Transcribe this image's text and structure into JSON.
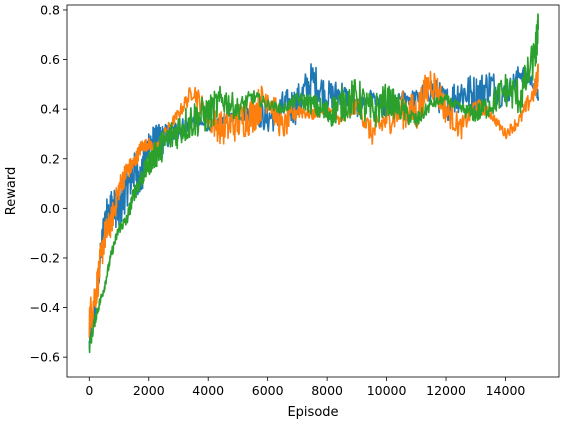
{
  "chart_data": {
    "type": "line",
    "title": "",
    "xlabel": "Episode",
    "ylabel": "Reward",
    "xlim": [
      -750,
      15800
    ],
    "ylim": [
      -0.68,
      0.82
    ],
    "xticks": [
      0,
      2000,
      4000,
      6000,
      8000,
      10000,
      12000,
      14000
    ],
    "xtick_labels": [
      "0",
      "2000",
      "4000",
      "6000",
      "8000",
      "10000",
      "12000",
      "14000"
    ],
    "yticks": [
      -0.6,
      -0.4,
      -0.2,
      0.0,
      0.2,
      0.4,
      0.6,
      0.8
    ],
    "ytick_labels": [
      "−0.6",
      "−0.4",
      "−0.2",
      "0.0",
      "0.2",
      "0.4",
      "0.6",
      "0.8"
    ],
    "grid": false,
    "legend": "none",
    "series": [
      {
        "color": "#1f77b4",
        "x": [
          0,
          250,
          500,
          750,
          1000,
          1250,
          1500,
          1750,
          2000,
          2250,
          2500,
          3000,
          3500,
          4000,
          4500,
          5000,
          5500,
          6000,
          6500,
          7000,
          7500,
          8000,
          8500,
          9000,
          9500,
          10000,
          10500,
          11000,
          11500,
          12000,
          12500,
          13000,
          13500,
          14000,
          14500,
          15000,
          15100
        ],
        "y": [
          -0.55,
          -0.35,
          -0.05,
          0.02,
          -0.02,
          0.08,
          0.15,
          0.12,
          0.26,
          0.27,
          0.28,
          0.32,
          0.35,
          0.33,
          0.36,
          0.38,
          0.39,
          0.36,
          0.4,
          0.42,
          0.52,
          0.45,
          0.47,
          0.4,
          0.46,
          0.38,
          0.45,
          0.44,
          0.48,
          0.42,
          0.47,
          0.46,
          0.5,
          0.45,
          0.55,
          0.5,
          0.45
        ]
      },
      {
        "color": "#ff7f0e",
        "x": [
          0,
          250,
          500,
          750,
          1000,
          1250,
          1500,
          1750,
          2000,
          2250,
          2500,
          3000,
          3500,
          4000,
          4500,
          5000,
          5500,
          6000,
          6500,
          7000,
          7500,
          8000,
          8500,
          9000,
          9500,
          10000,
          10500,
          11000,
          11500,
          12000,
          12500,
          13000,
          13500,
          14000,
          14500,
          15000,
          15100
        ],
        "y": [
          -0.45,
          -0.32,
          -0.12,
          -0.05,
          0.08,
          0.15,
          0.18,
          0.25,
          0.26,
          0.24,
          0.3,
          0.38,
          0.48,
          0.36,
          0.32,
          0.35,
          0.38,
          0.46,
          0.32,
          0.4,
          0.38,
          0.4,
          0.35,
          0.42,
          0.3,
          0.36,
          0.4,
          0.38,
          0.52,
          0.4,
          0.32,
          0.42,
          0.38,
          0.3,
          0.36,
          0.48,
          0.55
        ]
      },
      {
        "color": "#2ca02c",
        "x": [
          0,
          250,
          500,
          750,
          1000,
          1250,
          1500,
          1750,
          2000,
          2250,
          2500,
          3000,
          3500,
          4000,
          4500,
          5000,
          5500,
          6000,
          6500,
          7000,
          7500,
          8000,
          8500,
          9000,
          9500,
          10000,
          10500,
          11000,
          11500,
          12000,
          12500,
          13000,
          13500,
          14000,
          14500,
          15000,
          15100
        ],
        "y": [
          -0.56,
          -0.42,
          -0.32,
          -0.18,
          -0.08,
          -0.05,
          0.06,
          0.12,
          0.18,
          0.22,
          0.26,
          0.32,
          0.36,
          0.38,
          0.44,
          0.4,
          0.45,
          0.42,
          0.4,
          0.44,
          0.42,
          0.38,
          0.42,
          0.45,
          0.38,
          0.44,
          0.4,
          0.35,
          0.42,
          0.44,
          0.4,
          0.38,
          0.42,
          0.48,
          0.45,
          0.62,
          0.72
        ]
      }
    ]
  }
}
